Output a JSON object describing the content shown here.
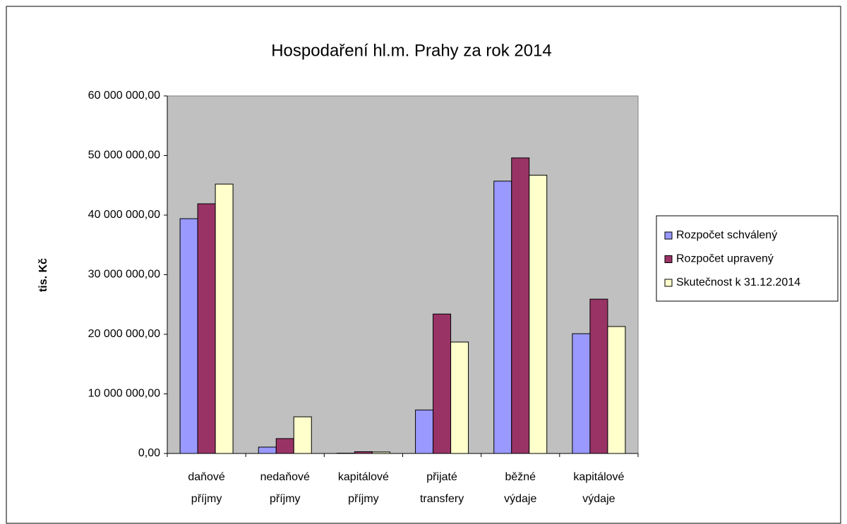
{
  "chart_data": {
    "type": "bar",
    "title": "Hospodaření hl.m. Prahy za rok 2014",
    "y_label": "tis. Kč",
    "categories": [
      "daňové příjmy",
      "nedaňové příjmy",
      "kapitálové příjmy",
      "přijaté transfery",
      "běžné výdaje",
      "kapitálové výdaje"
    ],
    "series": [
      {
        "name": "Rozpočet schválený",
        "color": "#9999ff",
        "values": [
          39400000,
          1070000,
          50000,
          7300000,
          45700000,
          20100000
        ]
      },
      {
        "name": "Rozpočet upravený",
        "color": "#993366",
        "values": [
          41900000,
          2500000,
          300000,
          23400000,
          49600000,
          25900000
        ]
      },
      {
        "name": "Skutečnost k 31.12.2014",
        "color": "#ffffcc",
        "values": [
          45200000,
          6150000,
          250000,
          18700000,
          46700000,
          21300000
        ]
      }
    ],
    "ylim": [
      0,
      60000000
    ],
    "yticks": [
      {
        "value": 0,
        "label": "0,00"
      },
      {
        "value": 10000000,
        "label": "10 000 000,00"
      },
      {
        "value": 20000000,
        "label": "20 000 000,00"
      },
      {
        "value": 30000000,
        "label": "30 000 000,00"
      },
      {
        "value": 40000000,
        "label": "40 000 000,00"
      },
      {
        "value": 50000000,
        "label": "50 000 000,00"
      },
      {
        "value": 60000000,
        "label": "60 000 000,00"
      }
    ],
    "grid": false,
    "plot_background": "#c0c0c0",
    "legend": "right"
  }
}
